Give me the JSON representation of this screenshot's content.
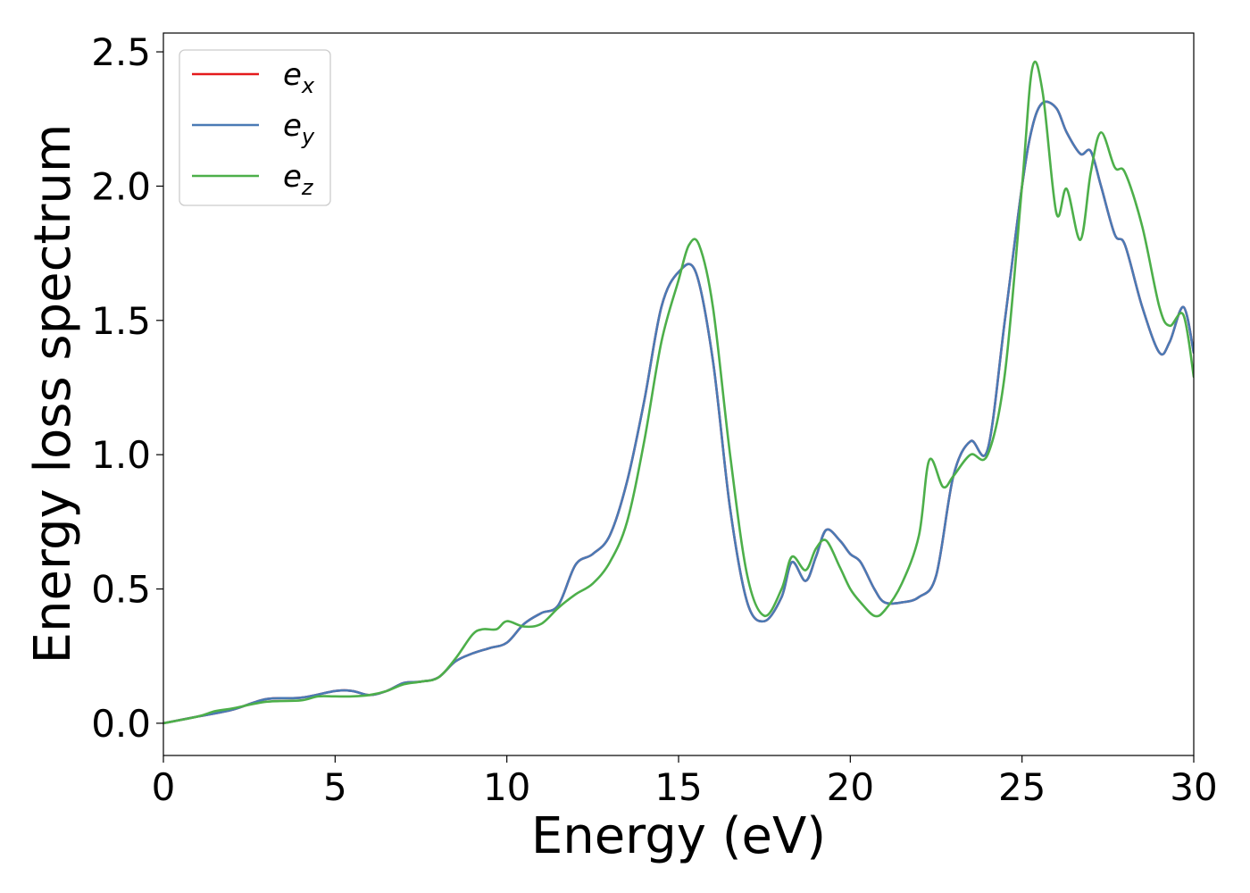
{
  "chart_data": {
    "type": "line",
    "title": "",
    "xlabel": "Energy (eV)",
    "ylabel": "Energy loss spectrum",
    "xlim": [
      0,
      30
    ],
    "ylim": [
      -0.12,
      2.57
    ],
    "xticks": [
      0,
      5,
      10,
      15,
      20,
      25,
      30
    ],
    "xtick_labels": [
      "0",
      "5",
      "10",
      "15",
      "20",
      "25",
      "30"
    ],
    "yticks": [
      0.0,
      0.5,
      1.0,
      1.5,
      2.0,
      2.5
    ],
    "ytick_labels": [
      "0.0",
      "0.5",
      "1.0",
      "1.5",
      "2.0",
      "2.5"
    ],
    "grid": false,
    "legend_position": "upper-left",
    "series": [
      {
        "name": "e_x",
        "label_base": "e",
        "label_sub": "x",
        "color": "#e41a1c",
        "x": [
          0,
          1,
          2,
          3,
          4,
          5,
          5.5,
          6,
          6.5,
          7,
          7.5,
          8,
          8.5,
          9,
          9.5,
          10,
          10.5,
          11,
          11.5,
          12,
          12.5,
          13,
          13.5,
          14,
          14.5,
          15,
          15.5,
          16,
          16.5,
          17,
          17.5,
          18,
          18.3,
          18.7,
          19,
          19.3,
          19.7,
          20,
          20.3,
          20.7,
          21,
          21.5,
          22,
          22.5,
          23,
          23.5,
          24,
          24.5,
          25,
          25.3,
          25.6,
          26,
          26.3,
          26.7,
          27,
          27.3,
          27.7,
          28,
          28.5,
          29,
          29.3,
          29.7,
          30
        ],
        "y": [
          0.0,
          0.025,
          0.05,
          0.09,
          0.095,
          0.12,
          0.12,
          0.105,
          0.12,
          0.15,
          0.155,
          0.17,
          0.23,
          0.26,
          0.28,
          0.3,
          0.37,
          0.41,
          0.44,
          0.59,
          0.63,
          0.7,
          0.9,
          1.2,
          1.55,
          1.68,
          1.68,
          1.35,
          0.8,
          0.45,
          0.38,
          0.47,
          0.6,
          0.53,
          0.62,
          0.72,
          0.68,
          0.63,
          0.6,
          0.5,
          0.45,
          0.45,
          0.47,
          0.55,
          0.92,
          1.05,
          1.02,
          1.5,
          2.0,
          2.22,
          2.31,
          2.29,
          2.2,
          2.12,
          2.13,
          2.0,
          1.82,
          1.78,
          1.55,
          1.38,
          1.42,
          1.55,
          1.38
        ]
      },
      {
        "name": "e_y",
        "label_base": "e",
        "label_sub": "y",
        "color": "#4a7ab5",
        "x": [
          0,
          1,
          2,
          3,
          4,
          5,
          5.5,
          6,
          6.5,
          7,
          7.5,
          8,
          8.5,
          9,
          9.5,
          10,
          10.5,
          11,
          11.5,
          12,
          12.5,
          13,
          13.5,
          14,
          14.5,
          15,
          15.5,
          16,
          16.5,
          17,
          17.5,
          18,
          18.3,
          18.7,
          19,
          19.3,
          19.7,
          20,
          20.3,
          20.7,
          21,
          21.5,
          22,
          22.5,
          23,
          23.5,
          24,
          24.5,
          25,
          25.3,
          25.6,
          26,
          26.3,
          26.7,
          27,
          27.3,
          27.7,
          28,
          28.5,
          29,
          29.3,
          29.7,
          30
        ],
        "y": [
          0.0,
          0.025,
          0.05,
          0.09,
          0.095,
          0.12,
          0.12,
          0.105,
          0.12,
          0.15,
          0.155,
          0.17,
          0.23,
          0.26,
          0.28,
          0.3,
          0.37,
          0.41,
          0.44,
          0.59,
          0.63,
          0.7,
          0.9,
          1.2,
          1.55,
          1.68,
          1.68,
          1.35,
          0.8,
          0.45,
          0.38,
          0.47,
          0.6,
          0.53,
          0.62,
          0.72,
          0.68,
          0.63,
          0.6,
          0.5,
          0.45,
          0.45,
          0.47,
          0.55,
          0.92,
          1.05,
          1.02,
          1.5,
          2.0,
          2.22,
          2.31,
          2.29,
          2.2,
          2.12,
          2.13,
          2.0,
          1.82,
          1.78,
          1.55,
          1.38,
          1.42,
          1.55,
          1.38
        ]
      },
      {
        "name": "e_z",
        "label_base": "e",
        "label_sub": "z",
        "color": "#4daf4a",
        "x": [
          0,
          1,
          1.5,
          2,
          3,
          4,
          4.5,
          5,
          5.5,
          6,
          6.5,
          7,
          7.5,
          8,
          8.5,
          9,
          9.3,
          9.7,
          10,
          10.5,
          11,
          11.5,
          12,
          12.5,
          13,
          13.5,
          14,
          14.5,
          15,
          15.3,
          15.6,
          16,
          16.5,
          17,
          17.5,
          18,
          18.3,
          18.7,
          19,
          19.3,
          19.7,
          20,
          20.3,
          20.7,
          21,
          21.5,
          22,
          22.3,
          22.7,
          23,
          23.5,
          24,
          24.5,
          25,
          25.3,
          25.6,
          26,
          26.3,
          26.7,
          27,
          27.3,
          27.7,
          28,
          28.5,
          29,
          29.3,
          29.7,
          30
        ],
        "y": [
          0.0,
          0.025,
          0.045,
          0.055,
          0.08,
          0.085,
          0.1,
          0.1,
          0.1,
          0.105,
          0.12,
          0.145,
          0.155,
          0.17,
          0.24,
          0.33,
          0.35,
          0.35,
          0.38,
          0.36,
          0.37,
          0.43,
          0.48,
          0.52,
          0.6,
          0.75,
          1.05,
          1.42,
          1.65,
          1.78,
          1.78,
          1.55,
          1.0,
          0.55,
          0.4,
          0.5,
          0.62,
          0.57,
          0.65,
          0.68,
          0.58,
          0.5,
          0.45,
          0.4,
          0.42,
          0.52,
          0.7,
          0.98,
          0.88,
          0.92,
          1.0,
          1.0,
          1.3,
          2.0,
          2.44,
          2.35,
          1.9,
          1.99,
          1.8,
          2.05,
          2.2,
          2.07,
          2.05,
          1.85,
          1.55,
          1.48,
          1.52,
          1.29
        ]
      }
    ]
  }
}
